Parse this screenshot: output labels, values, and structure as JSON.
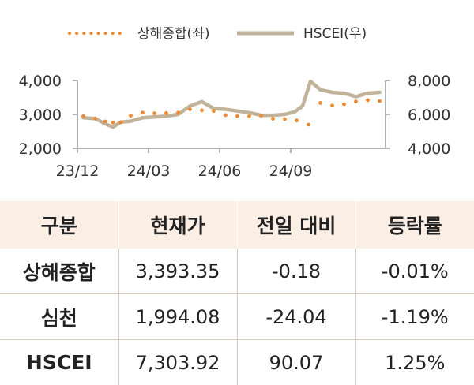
{
  "chart_data": {
    "type": "line",
    "x_ticks": [
      "23/12",
      "24/03",
      "24/06",
      "24/09"
    ],
    "y_left": {
      "ticks": [
        "4,000",
        "3,000",
        "2,000"
      ],
      "range": [
        2000,
        4000
      ]
    },
    "y_right": {
      "ticks": [
        "8,000",
        "6,000",
        "4,000"
      ],
      "range": [
        4000,
        8000
      ]
    },
    "colors": {
      "shanghai": "#ef8a2e",
      "hscei": "#c1b29a",
      "axis": "#999999"
    },
    "series": [
      {
        "name": "상해종합(좌)",
        "axis": "left",
        "style": "dotted",
        "x": [
          "23/12",
          "23/12",
          "24/01",
          "24/01",
          "24/01",
          "24/02",
          "24/02",
          "24/03",
          "24/03",
          "24/04",
          "24/04",
          "24/05",
          "24/05",
          "24/06",
          "24/06",
          "24/07",
          "24/07",
          "24/08",
          "24/08",
          "24/09",
          "24/09",
          "24/10",
          "24/10",
          "24/11",
          "24/11",
          "24/12",
          "24/12"
        ],
        "values": [
          2950,
          2880,
          2790,
          2760,
          2770,
          2960,
          3050,
          3030,
          3040,
          3050,
          3150,
          3120,
          3100,
          2980,
          2950,
          2950,
          2960,
          2870,
          2860,
          2820,
          2700,
          3340,
          3260,
          3300,
          3380,
          3420,
          3393
        ]
      },
      {
        "name": "HSCEI(우)",
        "axis": "right",
        "style": "solid",
        "x": [
          "23/12",
          "23/12",
          "24/01",
          "24/01",
          "24/01",
          "24/02",
          "24/02",
          "24/03",
          "24/03",
          "24/04",
          "24/04",
          "24/05",
          "24/05",
          "24/06",
          "24/06",
          "24/07",
          "24/07",
          "24/08",
          "24/08",
          "24/09",
          "24/09",
          "24/09",
          "24/10",
          "24/10",
          "24/11",
          "24/11",
          "24/12",
          "24/12"
        ],
        "values": [
          5800,
          5750,
          5450,
          5250,
          5550,
          5600,
          5800,
          5850,
          5900,
          6000,
          6500,
          6750,
          6350,
          6300,
          6200,
          6100,
          5950,
          5950,
          6000,
          6150,
          6500,
          7950,
          7450,
          7300,
          7250,
          7050,
          7250,
          7304
        ]
      }
    ]
  },
  "table": {
    "headers": [
      "구분",
      "현재가",
      "전일 대비",
      "등락률"
    ],
    "rows": [
      [
        "상해종합",
        "3,393.35",
        "-0.18",
        "-0.01%"
      ],
      [
        "심천",
        "1,994.08",
        "-24.04",
        "-1.19%"
      ],
      [
        "HSCEI",
        "7,303.92",
        "90.07",
        "1.25%"
      ]
    ]
  }
}
